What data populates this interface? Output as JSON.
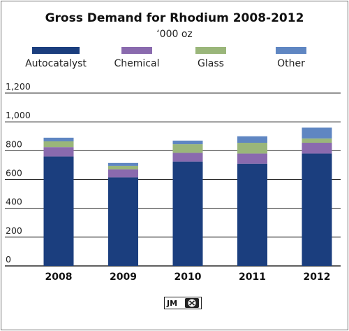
{
  "chart_data": {
    "type": "bar",
    "stacked": true,
    "title": "Gross Demand for Rhodium 2008-2012",
    "subtitle": "‘000 oz",
    "categories": [
      "2008",
      "2009",
      "2010",
      "2011",
      "2012"
    ],
    "series": [
      {
        "name": "Autocatalyst",
        "color": "#1b3e7e",
        "values": [
          760,
          615,
          725,
          710,
          780
        ]
      },
      {
        "name": "Chemical",
        "color": "#8a6aae",
        "values": [
          65,
          55,
          60,
          70,
          75
        ]
      },
      {
        "name": "Glass",
        "color": "#9ab67a",
        "values": [
          40,
          25,
          60,
          75,
          30
        ]
      },
      {
        "name": "Other",
        "color": "#5f86c2",
        "values": [
          25,
          20,
          25,
          45,
          75
        ]
      }
    ],
    "y_ticks": [
      "0",
      "200",
      "400",
      "600",
      "800",
      "1,000",
      "1,200"
    ],
    "y_tick_values": [
      0,
      200,
      400,
      600,
      800,
      1000,
      1200
    ],
    "ylim": [
      0,
      1200
    ],
    "grid": true,
    "legend_position": "top"
  },
  "logo": {
    "text": "JM",
    "icon": "johnson-matthey-seal-icon"
  }
}
